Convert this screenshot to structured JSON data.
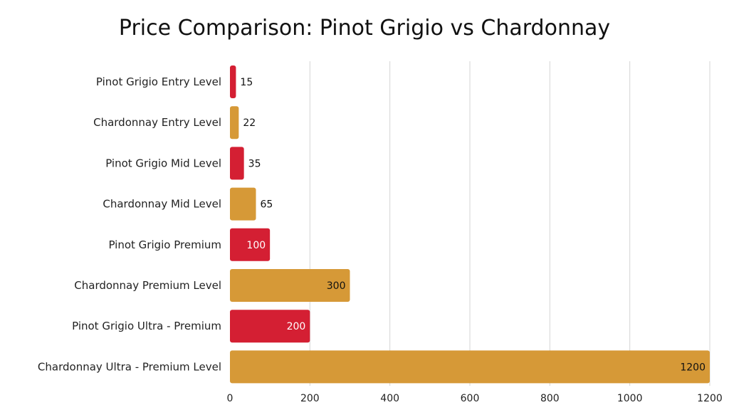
{
  "chart_data": {
    "type": "bar",
    "orientation": "horizontal",
    "title": "Price Comparison: Pinot Grigio vs Chardonnay",
    "categories": [
      "Pinot Grigio Entry Level",
      "Chardonnay Entry Level",
      "Pinot Grigio Mid Level",
      "Chardonnay Mid Level",
      "Pinot Grigio Premium",
      "Chardonnay Premium Level",
      "Pinot Grigio Ultra - Premium",
      "Chardonnay Ultra - Premium Level"
    ],
    "values": [
      15,
      22,
      35,
      65,
      100,
      300,
      200,
      1200
    ],
    "bar_colors": [
      "#d41f33",
      "#d69937",
      "#d41f33",
      "#d69937",
      "#d41f33",
      "#d69937",
      "#d41f33",
      "#d69937"
    ],
    "xlim": [
      0,
      1200
    ],
    "xticks": [
      0,
      200,
      400,
      600,
      800,
      1000,
      1200
    ],
    "grid": true,
    "legend": "none"
  }
}
